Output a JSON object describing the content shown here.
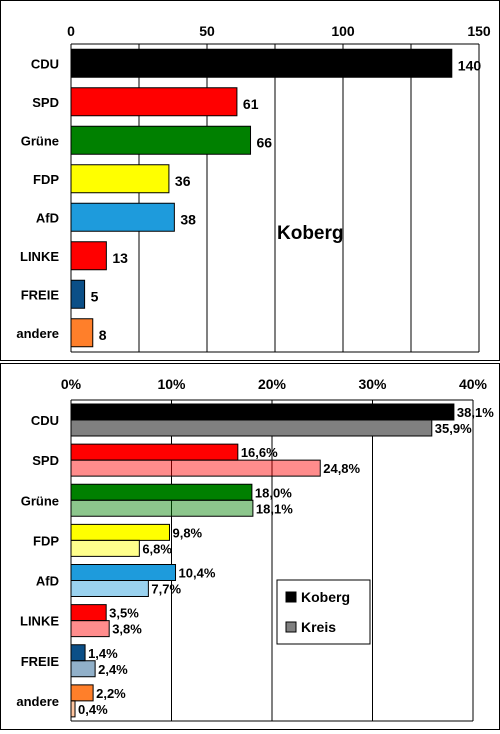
{
  "chart_data": [
    {
      "type": "bar",
      "orientation": "horizontal",
      "annotation": "Koberg",
      "categories": [
        "CDU",
        "SPD",
        "Grüne",
        "FDP",
        "AfD",
        "LINKE",
        "FREIE",
        "andere"
      ],
      "x_ticks": [
        "0",
        "50",
        "100",
        "150"
      ],
      "xlim": [
        0,
        150
      ],
      "grid": true,
      "series": [
        {
          "values": [
            140,
            61,
            66,
            36,
            38,
            13,
            5,
            8
          ],
          "labels": [
            "140",
            "61",
            "66",
            "36",
            "38",
            "13",
            "5",
            "8"
          ]
        }
      ],
      "colors": [
        "#000000",
        "#ff0000",
        "#008000",
        "#ffff00",
        "#1e9bdc",
        "#ff0000",
        "#0b4f87",
        "#ff7f2a"
      ]
    },
    {
      "type": "bar",
      "orientation": "horizontal",
      "categories": [
        "CDU",
        "SPD",
        "Grüne",
        "FDP",
        "AfD",
        "LINKE",
        "FREIE",
        "andere"
      ],
      "x_ticks": [
        "0%",
        "10%",
        "20%",
        "30%",
        "40%"
      ],
      "xlim": [
        0,
        40
      ],
      "grid": true,
      "legend_position": "right-middle",
      "series": [
        {
          "name": "Koberg",
          "values": [
            38.1,
            16.6,
            18.0,
            9.8,
            10.4,
            3.5,
            1.4,
            2.2
          ],
          "labels": [
            "38,1%",
            "16,6%",
            "18,0%",
            "9,8%",
            "10,4%",
            "3,5%",
            "1,4%",
            "2,2%"
          ]
        },
        {
          "name": "Kreis",
          "values": [
            35.9,
            24.8,
            18.1,
            6.8,
            7.7,
            3.8,
            2.4,
            0.4
          ],
          "labels": [
            "35,9%",
            "24,8%",
            "18,1%",
            "6,8%",
            "7,7%",
            "3,8%",
            "2,4%",
            "0,4%"
          ]
        }
      ],
      "colors": [
        "#000000",
        "#ff0000",
        "#008000",
        "#ffff00",
        "#1e9bdc",
        "#ff0000",
        "#0b4f87",
        "#ff7f2a"
      ],
      "legend_colors": [
        "#000000",
        "#808080"
      ]
    }
  ]
}
